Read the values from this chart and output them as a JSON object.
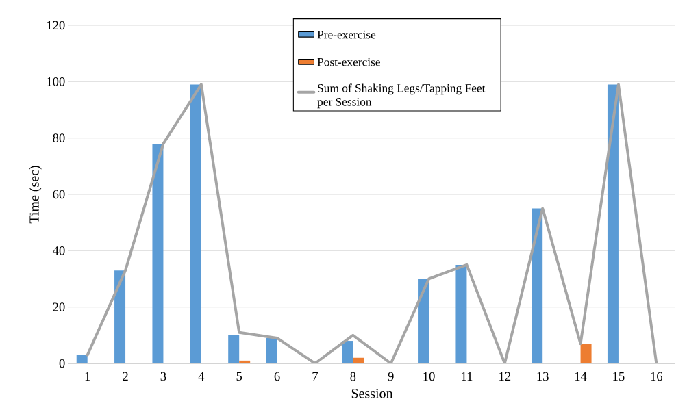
{
  "chart_data": {
    "type": "bar",
    "xlabel": "Session",
    "ylabel": "Time (sec)",
    "categories": [
      "1",
      "2",
      "3",
      "4",
      "5",
      "6",
      "7",
      "8",
      "9",
      "10",
      "11",
      "12",
      "13",
      "14",
      "15",
      "16"
    ],
    "series": [
      {
        "name": "Pre-exercise",
        "color": "#5b9bd5",
        "values": [
          3,
          33,
          78,
          99,
          10,
          9,
          0,
          8,
          0,
          30,
          35,
          0,
          55,
          0,
          99,
          0
        ]
      },
      {
        "name": "Post-exercise",
        "color": "#ed7d31",
        "values": [
          0,
          0,
          0,
          0,
          1,
          0,
          0,
          2,
          0,
          0,
          0,
          0,
          0,
          7,
          0,
          0
        ]
      },
      {
        "name": "Sum of Shaking Legs/Tapping Feet per Session",
        "type": "line",
        "color": "#a5a5a5",
        "values": [
          3,
          33,
          78,
          99,
          11,
          9,
          0,
          10,
          0,
          30,
          35,
          0,
          55,
          7,
          99,
          0
        ]
      }
    ],
    "ylim": [
      0,
      120
    ],
    "yticks": [
      0,
      20,
      40,
      60,
      80,
      100,
      120
    ],
    "grid": "y",
    "legend": "top"
  }
}
